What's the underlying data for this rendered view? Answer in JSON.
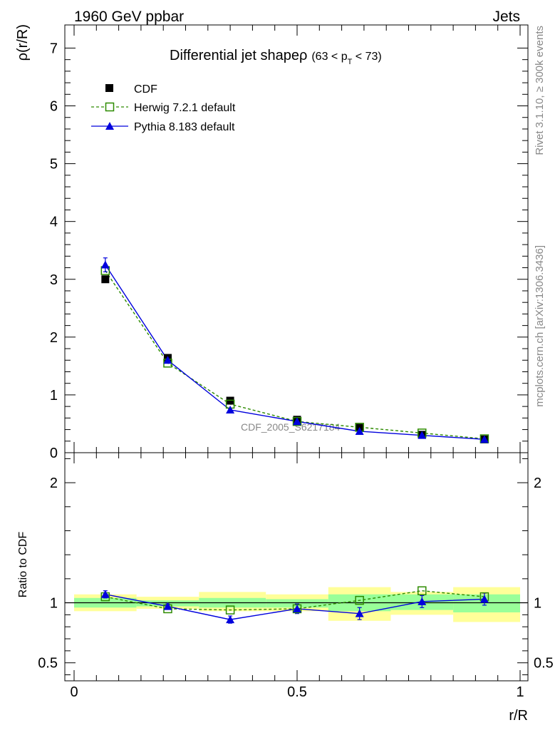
{
  "header": {
    "left": "1960 GeV ppbar",
    "right": "Jets"
  },
  "side_labels": {
    "rivet": "Rivet 3.1.10, ≥ 300k events",
    "mcplots": "mcplots.cern.ch [arXiv:1306.3436]"
  },
  "watermark": "CDF_2005_S6217184",
  "colors": {
    "cdf": "#000000",
    "herwig": "#2d8b00",
    "pythia": "#0000dd",
    "band_inner": "#99ff99",
    "band_outer": "#ffff99"
  },
  "chart_data": [
    {
      "type": "line",
      "title": "Differential jet shapeρ",
      "title_range": {
        "open": "(63 < p",
        "sub": "T",
        "close": " < 73)"
      },
      "xlabel": "r/R",
      "ylabel": "ρ(r/R)",
      "xlim": [
        0,
        1
      ],
      "ylim": [
        0,
        7.4
      ],
      "y_ticks": [
        "0",
        "1",
        "2",
        "3",
        "4",
        "5",
        "6",
        "7"
      ],
      "x": [
        0.07,
        0.21,
        0.35,
        0.5,
        0.64,
        0.78,
        0.92
      ],
      "series": [
        {
          "name": "CDF",
          "values": [
            3.0,
            1.64,
            0.9,
            0.57,
            0.43,
            0.31,
            0.23
          ],
          "errors": [
            0.02,
            0.02,
            0.02,
            0.02,
            0.01,
            0.01,
            0.01
          ]
        },
        {
          "name": "Herwig 7.2.1 default",
          "values": [
            3.15,
            1.55,
            0.84,
            0.54,
            0.44,
            0.34,
            0.24
          ]
        },
        {
          "name": "Pythia 8.183 default",
          "values": [
            3.25,
            1.6,
            0.74,
            0.54,
            0.37,
            0.3,
            0.23
          ],
          "errors": [
            0.12,
            0.05,
            0.03,
            0.02,
            0.02,
            0.01,
            0.01
          ]
        }
      ]
    },
    {
      "type": "line",
      "title": "",
      "xlabel": "r/R",
      "ylabel": "Ratio to CDF",
      "xlim": [
        0,
        1
      ],
      "ylim": [
        0.35,
        2.25
      ],
      "y_ticks": [
        "0.5",
        "1",
        "2"
      ],
      "x_ticks": [
        "0",
        "0.5",
        "1"
      ],
      "x": [
        0.07,
        0.21,
        0.35,
        0.5,
        0.64,
        0.78,
        0.92
      ],
      "bin_edges": [
        0,
        0.14,
        0.28,
        0.43,
        0.57,
        0.71,
        0.85,
        1.0
      ],
      "band_inner": [
        [
          0.96,
          1.04
        ],
        [
          0.97,
          1.02
        ],
        [
          0.96,
          1.04
        ],
        [
          0.96,
          1.03
        ],
        [
          0.93,
          1.07
        ],
        [
          0.94,
          1.07
        ],
        [
          0.92,
          1.07
        ]
      ],
      "band_outer": [
        [
          0.93,
          1.07
        ],
        [
          0.95,
          1.05
        ],
        [
          0.93,
          1.09
        ],
        [
          0.93,
          1.07
        ],
        [
          0.85,
          1.13
        ],
        [
          0.9,
          1.09
        ],
        [
          0.84,
          1.13
        ]
      ],
      "series": [
        {
          "name": "Herwig 7.2.1 default",
          "values": [
            1.05,
            0.95,
            0.94,
            0.95,
            1.02,
            1.1,
            1.05
          ]
        },
        {
          "name": "Pythia 8.183 default",
          "values": [
            1.07,
            0.97,
            0.86,
            0.95,
            0.91,
            1.01,
            1.03
          ],
          "errors": [
            0.03,
            0.02,
            0.03,
            0.04,
            0.05,
            0.05,
            0.05
          ]
        }
      ]
    }
  ]
}
